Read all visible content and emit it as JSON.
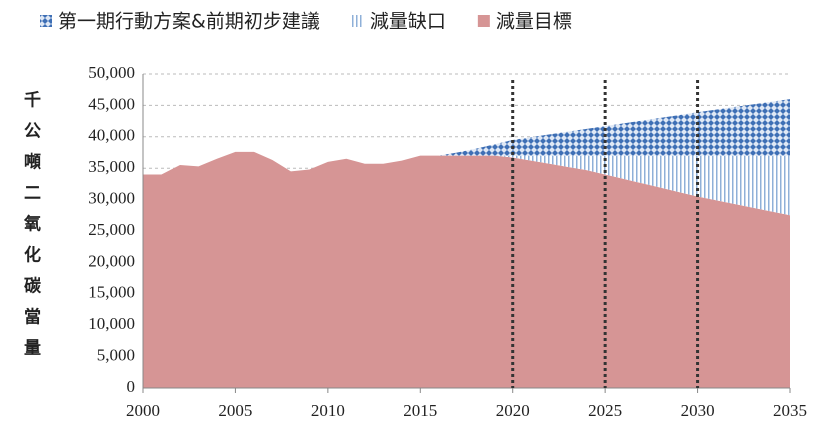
{
  "chart_data": {
    "type": "stacked_area",
    "y_label": "千公噸二氧化碳當量",
    "x": [
      2000,
      2001,
      2002,
      2003,
      2004,
      2005,
      2006,
      2007,
      2008,
      2009,
      2010,
      2011,
      2012,
      2013,
      2014,
      2015,
      2016,
      2017,
      2018,
      2019,
      2020,
      2021,
      2022,
      2023,
      2024,
      2025,
      2026,
      2027,
      2028,
      2029,
      2030,
      2031,
      2032,
      2033,
      2034,
      2035
    ],
    "series": [
      {
        "name": "減量目標",
        "color": "#d69595",
        "fill": "solid",
        "values": [
          34000,
          34000,
          35500,
          35300,
          36500,
          37600,
          37600,
          36300,
          34500,
          34800,
          36000,
          36500,
          35700,
          35700,
          36200,
          37000,
          37000,
          37000,
          37000,
          37000,
          36700,
          36200,
          35700,
          35200,
          34700,
          34000,
          33300,
          32600,
          31900,
          31200,
          30500,
          29900,
          29300,
          28700,
          28100,
          27500
        ]
      },
      {
        "name": "減量缺口",
        "color": "#8fb0d8",
        "fill": "vertical-lines",
        "values": [
          0,
          0,
          0,
          0,
          0,
          0,
          0,
          0,
          0,
          0,
          0,
          0,
          0,
          0,
          0,
          0,
          0,
          0,
          0,
          0,
          300,
          800,
          1300,
          1800,
          2300,
          3000,
          3700,
          4400,
          5100,
          5800,
          6500,
          7100,
          7700,
          8300,
          8900,
          9500
        ]
      },
      {
        "name": "第一期行動方案&前期初步建議",
        "color": "#3e6fb5",
        "fill": "crosshatch",
        "values": [
          0,
          0,
          0,
          0,
          0,
          0,
          0,
          0,
          0,
          0,
          0,
          0,
          0,
          0,
          0,
          0,
          0,
          500,
          1100,
          1800,
          2500,
          2940,
          3380,
          3820,
          4260,
          4700,
          5140,
          5580,
          6020,
          6460,
          6900,
          7320,
          7740,
          8160,
          8580,
          9000
        ]
      }
    ],
    "legend_order": [
      2,
      1,
      0
    ],
    "reference_lines": [
      2020,
      2025,
      2030
    ],
    "xlim": [
      2000,
      2035
    ],
    "xticks": [
      2000,
      2005,
      2010,
      2015,
      2020,
      2025,
      2030,
      2035
    ],
    "ylim": [
      0,
      50000
    ],
    "yticks": [
      0,
      {
        "value": 5000,
        "label": "5,000"
      },
      {
        "value": 10000,
        "label": "10,000"
      },
      {
        "value": 15000,
        "label": "15,000"
      },
      {
        "value": 20000,
        "label": "20,000"
      },
      {
        "value": 25000,
        "label": "25,000"
      },
      {
        "value": 30000,
        "label": "30,000"
      },
      {
        "value": 35000,
        "label": "35,000"
      },
      {
        "value": 40000,
        "label": "40,000"
      },
      {
        "value": 45000,
        "label": "45,000"
      },
      {
        "value": 50000,
        "label": "50,000"
      }
    ],
    "grid": true
  }
}
